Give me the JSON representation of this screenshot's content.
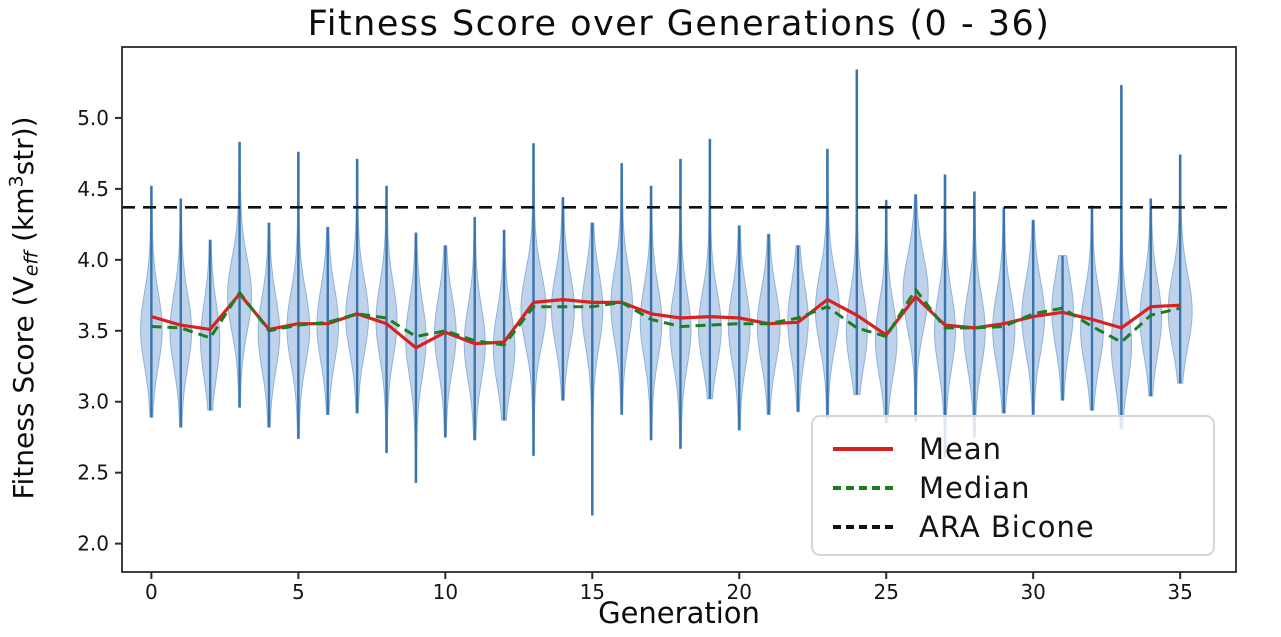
{
  "chart_data": {
    "type": "violin",
    "title": "Fitness Score over Generations (0 - 36)",
    "xlabel": "Generation",
    "ylabel_plain": "Fitness Score (V_eff (km^3 str))",
    "ylabel_parts": {
      "prefix": "Fitness Score (V",
      "sub": "eff",
      "mid": " (km",
      "sup": "3",
      "suffix": "str))"
    },
    "x_ticks": [
      0,
      5,
      10,
      15,
      20,
      25,
      30,
      35
    ],
    "x_tick_labels": [
      "0",
      "5",
      "10",
      "15",
      "20",
      "25",
      "30",
      "35"
    ],
    "y_ticks": [
      2.0,
      2.5,
      3.0,
      3.5,
      4.0,
      4.5,
      5.0
    ],
    "y_tick_labels": [
      "2.0",
      "2.5",
      "3.0",
      "3.5",
      "4.0",
      "4.5",
      "5.0"
    ],
    "xlim": [
      -1.0,
      36.9
    ],
    "ylim": [
      1.8,
      5.5
    ],
    "grid": false,
    "generations": [
      0,
      1,
      2,
      3,
      4,
      5,
      6,
      7,
      8,
      9,
      10,
      11,
      12,
      13,
      14,
      15,
      16,
      17,
      18,
      19,
      20,
      21,
      22,
      23,
      24,
      25,
      26,
      27,
      28,
      29,
      30,
      31,
      32,
      33,
      34,
      35
    ],
    "violin_min": [
      2.89,
      2.82,
      2.94,
      2.96,
      2.82,
      2.74,
      2.91,
      2.92,
      2.64,
      2.43,
      2.75,
      2.73,
      2.87,
      2.62,
      3.01,
      2.2,
      2.91,
      2.73,
      2.67,
      3.02,
      2.8,
      2.91,
      2.93,
      2.88,
      3.05,
      2.85,
      2.86,
      2.61,
      2.75,
      2.92,
      2.91,
      3.01,
      2.94,
      2.81,
      3.04,
      3.13
    ],
    "violin_max": [
      4.52,
      4.43,
      4.14,
      4.83,
      4.26,
      4.76,
      4.23,
      4.71,
      4.52,
      4.19,
      4.1,
      4.3,
      4.21,
      4.82,
      4.44,
      4.26,
      4.68,
      4.52,
      4.71,
      4.85,
      4.24,
      4.18,
      4.1,
      4.78,
      5.34,
      4.42,
      4.46,
      4.6,
      4.48,
      4.37,
      4.28,
      4.03,
      4.38,
      5.23,
      4.43,
      4.74
    ],
    "violin_halfwidth": [
      0.34,
      0.34,
      0.3,
      0.38,
      0.34,
      0.36,
      0.34,
      0.36,
      0.33,
      0.32,
      0.34,
      0.33,
      0.34,
      0.4,
      0.36,
      0.33,
      0.34,
      0.34,
      0.33,
      0.36,
      0.34,
      0.36,
      0.32,
      0.38,
      0.33,
      0.34,
      0.4,
      0.33,
      0.34,
      0.35,
      0.36,
      0.34,
      0.36,
      0.32,
      0.34,
      0.38
    ],
    "series": [
      {
        "name": "Mean",
        "style": "solid",
        "color": "#d92121",
        "values": [
          3.6,
          3.54,
          3.51,
          3.76,
          3.51,
          3.55,
          3.55,
          3.62,
          3.55,
          3.38,
          3.49,
          3.41,
          3.42,
          3.7,
          3.72,
          3.7,
          3.7,
          3.62,
          3.59,
          3.6,
          3.59,
          3.55,
          3.56,
          3.72,
          3.61,
          3.47,
          3.74,
          3.54,
          3.52,
          3.55,
          3.6,
          3.63,
          3.58,
          3.52,
          3.67,
          3.68
        ]
      },
      {
        "name": "Median",
        "style": "dashed",
        "color": "#1e7d1e",
        "values": [
          3.53,
          3.52,
          3.45,
          3.77,
          3.5,
          3.54,
          3.56,
          3.62,
          3.59,
          3.46,
          3.5,
          3.43,
          3.4,
          3.67,
          3.67,
          3.67,
          3.7,
          3.58,
          3.53,
          3.54,
          3.55,
          3.55,
          3.59,
          3.67,
          3.52,
          3.46,
          3.79,
          3.52,
          3.52,
          3.53,
          3.62,
          3.66,
          3.53,
          3.42,
          3.61,
          3.66
        ]
      }
    ],
    "reference_line": {
      "name": "ARA Bicone",
      "value": 4.37,
      "style": "dashed",
      "color": "#111111"
    },
    "legend": {
      "position": "lower right",
      "entries": [
        "Mean",
        "Median",
        "ARA Bicone"
      ]
    },
    "colors": {
      "violin_fill": "#b3cbe7",
      "violin_edge": "#8fb3d9",
      "violin_line": "#3a74ad",
      "spine": "#2a2a2a"
    }
  }
}
